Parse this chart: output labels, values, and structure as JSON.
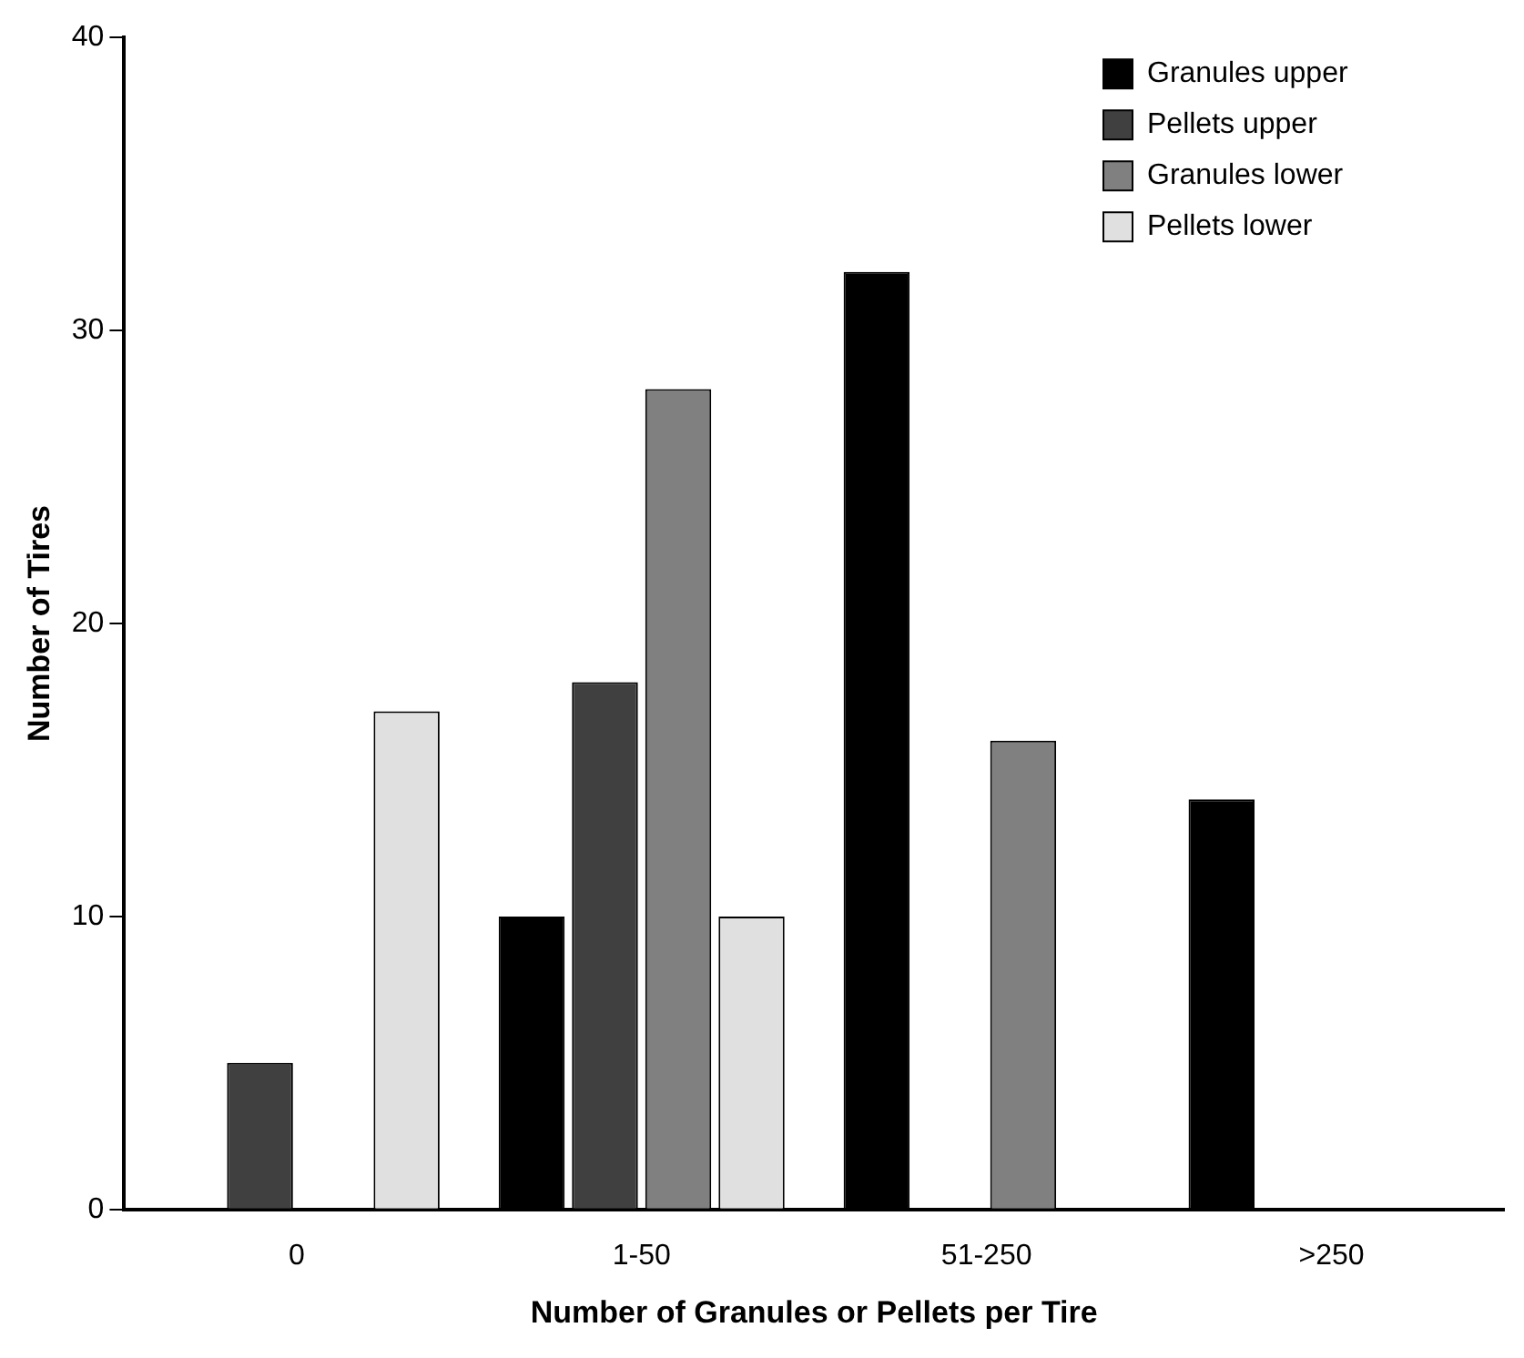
{
  "chart_data": {
    "type": "bar",
    "xlabel": "Number of Granules or Pellets per Tire",
    "ylabel": "Number of Tires",
    "categories": [
      "0",
      "1-50",
      "51-250",
      ">250"
    ],
    "series": [
      {
        "name": "Granules upper",
        "color": "#000000",
        "values": [
          0,
          10,
          32,
          14
        ]
      },
      {
        "name": "Pellets upper",
        "color": "#404040",
        "values": [
          5,
          18,
          0,
          0
        ]
      },
      {
        "name": "Granules lower",
        "color": "#808080",
        "values": [
          0,
          28,
          16,
          0
        ]
      },
      {
        "name": "Pellets lower",
        "color": "#e0e0e0",
        "values": [
          17,
          10,
          0,
          0
        ]
      }
    ],
    "ylim": [
      0,
      40
    ],
    "yticks": [
      0,
      10,
      20,
      30,
      40
    ],
    "grid": false,
    "legend": "top right"
  }
}
